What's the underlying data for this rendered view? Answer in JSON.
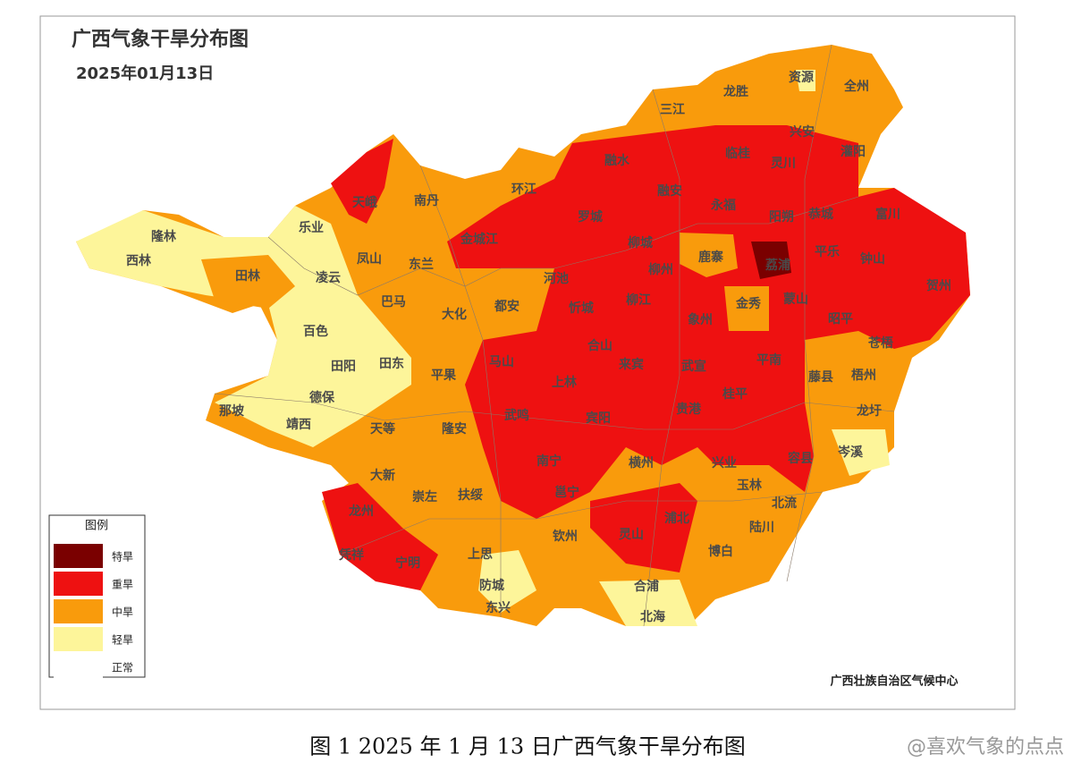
{
  "header": {
    "title": "广西气象干旱分布图",
    "date": "2025年01月13日"
  },
  "legend": {
    "title": "图例",
    "items": [
      {
        "label": "特旱",
        "color": "#7a0000"
      },
      {
        "label": "重旱",
        "color": "#ee1111"
      },
      {
        "label": "中旱",
        "color": "#f99b0c"
      },
      {
        "label": "轻旱",
        "color": "#fdf59a"
      },
      {
        "label": "正常",
        "color": "#ffffff"
      }
    ]
  },
  "counties": [
    "隆林",
    "西林",
    "乐业",
    "天峨",
    "南丹",
    "环江",
    "融水",
    "三江",
    "龙胜",
    "资源",
    "全州",
    "兴安",
    "灌阳",
    "临桂",
    "灵川",
    "融安",
    "永福",
    "阳朔",
    "恭城",
    "罗城",
    "金城江",
    "凤山",
    "东兰",
    "田林",
    "凌云",
    "河池",
    "柳城",
    "柳州",
    "鹿寨",
    "平乐",
    "荔浦",
    "钟山",
    "富川",
    "贺州",
    "巴马",
    "大化",
    "都安",
    "忻城",
    "柳江",
    "金秀",
    "蒙山",
    "昭平",
    "百色",
    "象州",
    "苍梧",
    "合山",
    "马山",
    "平果",
    "田阳",
    "田东",
    "来宾",
    "武宣",
    "平南",
    "藤县",
    "梧州",
    "德保",
    "那坡",
    "上林",
    "桂平",
    "靖西",
    "天等",
    "隆安",
    "武鸣",
    "宾阳",
    "贵港",
    "龙圩",
    "岑溪",
    "大新",
    "崇左",
    "扶绥",
    "南宁",
    "横州",
    "兴业",
    "玉林",
    "容县",
    "北流",
    "邕宁",
    "龙州",
    "凭祥",
    "宁明",
    "上思",
    "钦州",
    "灵山",
    "浦北",
    "陆川",
    "博白",
    "防城",
    "东兴",
    "合浦",
    "北海"
  ],
  "source": "广西壮族自治区气候中心",
  "caption": "图 1  2025 年 1 月 13 日广西气象干旱分布图",
  "watermark": "@喜欢气象的点点"
}
